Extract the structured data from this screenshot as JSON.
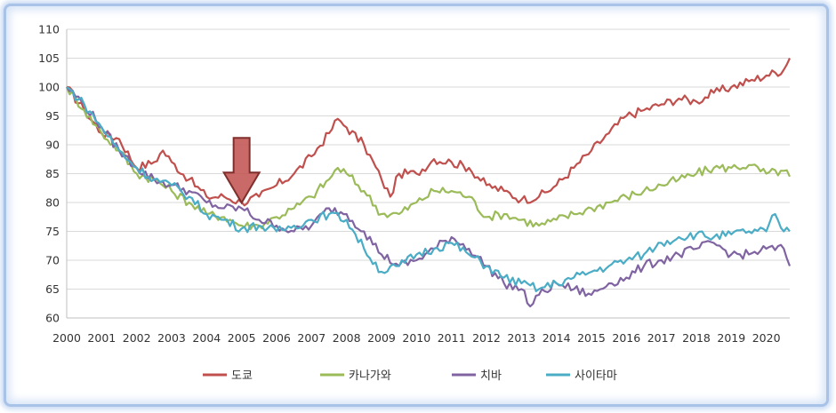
{
  "chart_data": {
    "type": "line",
    "title": "",
    "xlabel": "",
    "ylabel": "",
    "ylim": [
      60,
      110
    ],
    "xlim": [
      2000,
      2020.67
    ],
    "y_ticks": [
      "60",
      "65",
      "70",
      "75",
      "80",
      "85",
      "90",
      "95",
      "100",
      "105",
      "110"
    ],
    "x_ticks": [
      "2000",
      "2001",
      "2002",
      "2003",
      "2004",
      "2005",
      "2006",
      "2007",
      "2008",
      "2009",
      "2010",
      "2011",
      "2012",
      "2013",
      "2014",
      "2015",
      "2016",
      "2017",
      "2018",
      "2019",
      "2020"
    ],
    "grid": "horizontal",
    "legend_position": "bottom",
    "annotation": {
      "type": "down-arrow",
      "x": 2005.0,
      "y": 79.5,
      "color": "#c0504d"
    },
    "series": [
      {
        "name": "도쿄",
        "color": "#c0504d",
        "x": [
          2000.0,
          2000.5,
          2001.0,
          2001.5,
          2002.0,
          2002.5,
          2002.75,
          2003.0,
          2003.5,
          2004.0,
          2004.5,
          2005.0,
          2005.5,
          2006.0,
          2006.5,
          2007.0,
          2007.5,
          2007.75,
          2008.0,
          2008.5,
          2009.0,
          2009.25,
          2009.5,
          2010.0,
          2010.5,
          2011.0,
          2011.5,
          2012.0,
          2012.5,
          2013.0,
          2013.5,
          2014.0,
          2014.5,
          2015.0,
          2015.5,
          2016.0,
          2016.5,
          2017.0,
          2017.5,
          2018.0,
          2018.5,
          2019.0,
          2019.5,
          2020.0,
          2020.5,
          2020.67
        ],
        "y": [
          100,
          96,
          92,
          91,
          86,
          87,
          89,
          87,
          84,
          81,
          81,
          80,
          81,
          83,
          85,
          88,
          92,
          94.5,
          93,
          90,
          84,
          81,
          85,
          85,
          87.5,
          87,
          86,
          83,
          82,
          80.5,
          81,
          83,
          86,
          89,
          92,
          95,
          96,
          97,
          98,
          97.5,
          99,
          100,
          101,
          102,
          103,
          105
        ]
      },
      {
        "name": "카나가와",
        "color": "#9bbb59",
        "x": [
          2000.0,
          2000.5,
          2001.0,
          2001.5,
          2002.0,
          2002.5,
          2003.0,
          2003.5,
          2004.0,
          2004.5,
          2005.0,
          2005.5,
          2006.0,
          2006.5,
          2007.0,
          2007.5,
          2007.75,
          2008.0,
          2008.5,
          2009.0,
          2009.5,
          2010.0,
          2010.5,
          2011.0,
          2011.5,
          2012.0,
          2012.5,
          2013.0,
          2013.5,
          2014.0,
          2014.5,
          2015.0,
          2015.5,
          2016.0,
          2016.5,
          2017.0,
          2017.5,
          2018.0,
          2018.5,
          2019.0,
          2019.5,
          2020.0,
          2020.5,
          2020.67
        ],
        "y": [
          100,
          96,
          92,
          89,
          85,
          84,
          82,
          80,
          78,
          77.5,
          76,
          76,
          77.5,
          79,
          81,
          84,
          86,
          85,
          82,
          78,
          78,
          80,
          82,
          82,
          81,
          77.5,
          78,
          77,
          76,
          77,
          78,
          79,
          80,
          81,
          82,
          83,
          84,
          85,
          86,
          86,
          86.5,
          85,
          85.5,
          84.5
        ]
      },
      {
        "name": "치바",
        "color": "#8064a2",
        "x": [
          2000.0,
          2000.5,
          2001.0,
          2001.5,
          2002.0,
          2002.5,
          2003.0,
          2003.5,
          2004.0,
          2004.5,
          2005.0,
          2005.5,
          2006.0,
          2006.5,
          2007.0,
          2007.5,
          2008.0,
          2008.5,
          2009.0,
          2009.5,
          2010.0,
          2010.5,
          2011.0,
          2011.5,
          2012.0,
          2012.5,
          2013.0,
          2013.25,
          2013.5,
          2014.0,
          2014.5,
          2015.0,
          2015.5,
          2016.0,
          2016.5,
          2017.0,
          2017.5,
          2018.0,
          2018.5,
          2019.0,
          2019.5,
          2020.0,
          2020.5,
          2020.67
        ],
        "y": [
          100,
          97,
          93,
          89,
          86,
          84,
          83,
          82,
          80,
          79,
          79,
          77,
          76,
          75,
          76,
          79,
          78,
          75,
          71,
          69,
          70,
          72,
          74,
          72,
          69,
          66,
          65,
          62,
          64,
          66,
          65,
          64,
          66,
          67,
          69,
          70,
          71,
          72,
          73,
          71,
          71,
          72,
          72,
          69
        ]
      },
      {
        "name": "사이타마",
        "color": "#4bacc6",
        "x": [
          2000.0,
          2000.5,
          2001.0,
          2001.5,
          2002.0,
          2002.5,
          2003.0,
          2003.5,
          2004.0,
          2004.5,
          2005.0,
          2005.5,
          2006.0,
          2006.5,
          2007.0,
          2007.5,
          2008.0,
          2008.5,
          2009.0,
          2009.5,
          2010.0,
          2010.5,
          2011.0,
          2011.5,
          2012.0,
          2012.5,
          2013.0,
          2013.5,
          2014.0,
          2014.5,
          2015.0,
          2015.5,
          2016.0,
          2016.5,
          2017.0,
          2017.5,
          2018.0,
          2018.5,
          2019.0,
          2019.5,
          2020.0,
          2020.25,
          2020.5,
          2020.67
        ],
        "y": [
          100,
          97,
          93,
          89,
          86,
          84,
          83,
          81,
          78,
          77,
          75.5,
          76,
          75,
          76,
          77,
          78,
          77,
          72,
          68,
          69,
          71,
          72,
          73,
          71,
          69,
          67,
          66,
          65,
          66,
          67,
          68,
          69,
          70,
          71,
          73,
          74,
          74.5,
          74,
          74.5,
          75,
          75,
          78,
          75,
          75
        ]
      }
    ]
  }
}
